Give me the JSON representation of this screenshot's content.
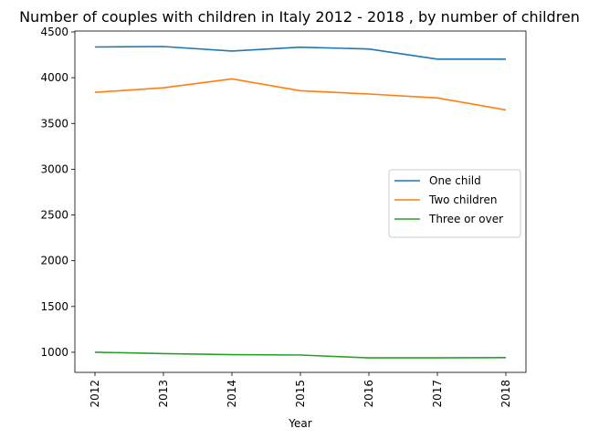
{
  "chart_data": {
    "type": "line",
    "title": "Number of couples with children in Italy 2012 - 2018 , by number of children",
    "xlabel": "Year",
    "ylabel": "",
    "x": [
      "2012",
      "2013",
      "2014",
      "2015",
      "2016",
      "2017",
      "2018"
    ],
    "ylim": [
      780,
      4510
    ],
    "yticks": [
      1000,
      1500,
      2000,
      2500,
      3000,
      3500,
      4000,
      4500
    ],
    "grid": false,
    "legend_position": "center-right",
    "series": [
      {
        "name": "One child",
        "color": "#1f77b4",
        "values": [
          4335,
          4340,
          4292,
          4333,
          4314,
          4203,
          4203
        ]
      },
      {
        "name": "Two children",
        "color": "#ff7f0e",
        "values": [
          3840,
          3890,
          3987,
          3858,
          3822,
          3779,
          3648
        ]
      },
      {
        "name": "Three or over",
        "color": "#2ca02c",
        "values": [
          1000,
          985,
          973,
          969,
          939,
          939,
          942
        ]
      }
    ]
  }
}
